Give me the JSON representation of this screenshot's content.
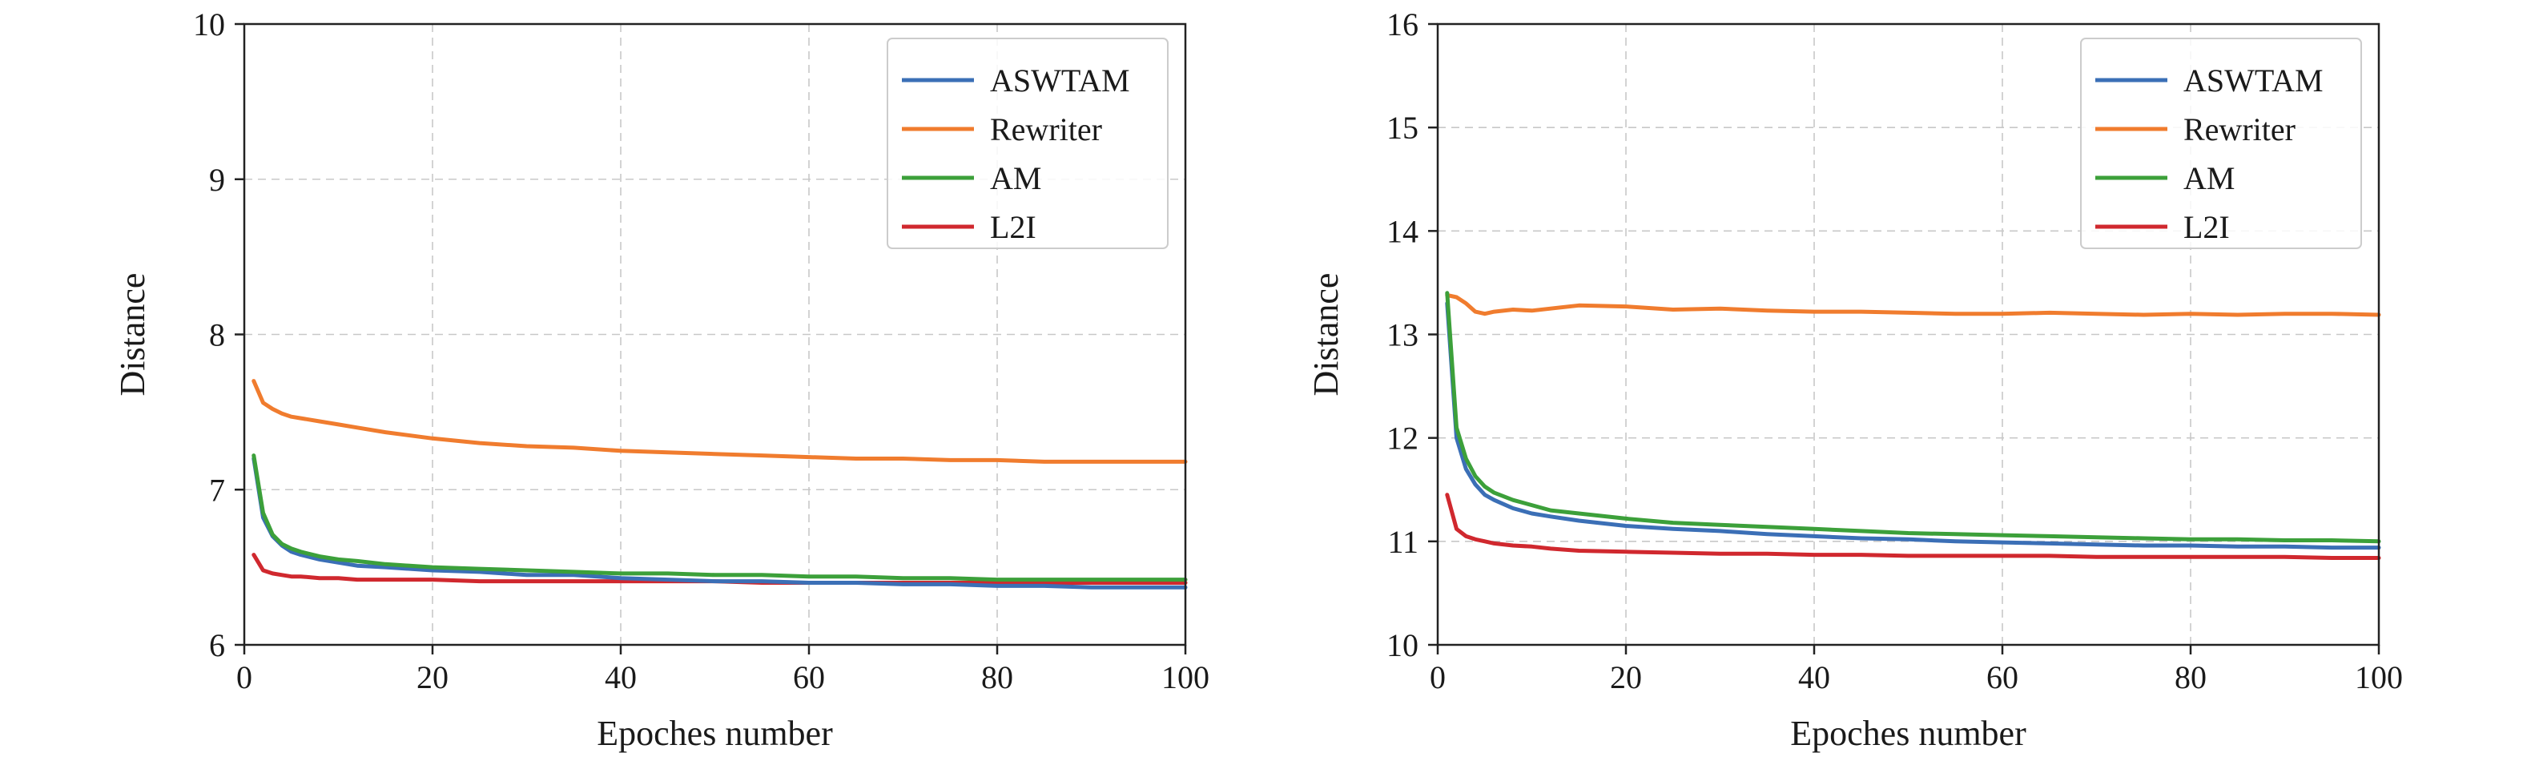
{
  "colors": {
    "ASWTAM": "#3b6fb6",
    "Rewriter": "#f07c2e",
    "AM": "#3ca03a",
    "L2I": "#d0282e",
    "grid": "#c8c8c8",
    "axis": "#222222"
  },
  "chart_data": [
    {
      "type": "line",
      "title": "",
      "xlabel": "Epoches number",
      "ylabel": "Distance",
      "xlim": [
        0,
        100
      ],
      "ylim": [
        6,
        10
      ],
      "xticks": [
        "0",
        "20",
        "40",
        "60",
        "80",
        "100"
      ],
      "yticks": [
        "6",
        "7",
        "8",
        "9",
        "10"
      ],
      "grid": true,
      "legend_position": "top-right",
      "x": [
        1,
        2,
        3,
        4,
        5,
        6,
        8,
        10,
        12,
        15,
        20,
        25,
        30,
        35,
        40,
        45,
        50,
        55,
        60,
        65,
        70,
        75,
        80,
        85,
        90,
        95,
        100
      ],
      "series": [
        {
          "name": "ASWTAM",
          "color": "#3b6fb6",
          "values": [
            7.2,
            6.82,
            6.7,
            6.64,
            6.6,
            6.58,
            6.55,
            6.53,
            6.51,
            6.5,
            6.48,
            6.47,
            6.45,
            6.45,
            6.43,
            6.42,
            6.41,
            6.41,
            6.4,
            6.4,
            6.39,
            6.39,
            6.38,
            6.38,
            6.37,
            6.37,
            6.37
          ]
        },
        {
          "name": "Rewriter",
          "color": "#f07c2e",
          "values": [
            7.7,
            7.56,
            7.52,
            7.49,
            7.47,
            7.46,
            7.44,
            7.42,
            7.4,
            7.37,
            7.33,
            7.3,
            7.28,
            7.27,
            7.25,
            7.24,
            7.23,
            7.22,
            7.21,
            7.2,
            7.2,
            7.19,
            7.19,
            7.18,
            7.18,
            7.18,
            7.18
          ]
        },
        {
          "name": "AM",
          "color": "#3ca03a",
          "values": [
            7.22,
            6.85,
            6.71,
            6.65,
            6.62,
            6.6,
            6.57,
            6.55,
            6.54,
            6.52,
            6.5,
            6.49,
            6.48,
            6.47,
            6.46,
            6.46,
            6.45,
            6.45,
            6.44,
            6.44,
            6.43,
            6.43,
            6.42,
            6.42,
            6.42,
            6.42,
            6.42
          ]
        },
        {
          "name": "L2I",
          "color": "#d0282e",
          "values": [
            6.58,
            6.48,
            6.46,
            6.45,
            6.44,
            6.44,
            6.43,
            6.43,
            6.42,
            6.42,
            6.42,
            6.41,
            6.41,
            6.41,
            6.41,
            6.41,
            6.41,
            6.4,
            6.4,
            6.4,
            6.4,
            6.4,
            6.4,
            6.4,
            6.4,
            6.4,
            6.4
          ]
        }
      ]
    },
    {
      "type": "line",
      "title": "",
      "xlabel": "Epoches number",
      "ylabel": "Distance",
      "xlim": [
        0,
        100
      ],
      "ylim": [
        10,
        16
      ],
      "xticks": [
        "0",
        "20",
        "40",
        "60",
        "80",
        "100"
      ],
      "yticks": [
        "10",
        "11",
        "12",
        "13",
        "14",
        "15",
        "16"
      ],
      "grid": true,
      "legend_position": "top-right",
      "x": [
        1,
        2,
        3,
        4,
        5,
        6,
        8,
        10,
        12,
        15,
        20,
        25,
        30,
        35,
        40,
        45,
        50,
        55,
        60,
        65,
        70,
        75,
        80,
        85,
        90,
        95,
        100
      ],
      "series": [
        {
          "name": "ASWTAM",
          "color": "#3b6fb6",
          "values": [
            13.3,
            12.0,
            11.7,
            11.55,
            11.45,
            11.4,
            11.32,
            11.27,
            11.24,
            11.2,
            11.15,
            11.12,
            11.1,
            11.07,
            11.05,
            11.03,
            11.02,
            11.0,
            10.99,
            10.98,
            10.97,
            10.96,
            10.96,
            10.95,
            10.95,
            10.94,
            10.94
          ]
        },
        {
          "name": "Rewriter",
          "color": "#f07c2e",
          "values": [
            13.38,
            13.36,
            13.3,
            13.22,
            13.2,
            13.22,
            13.24,
            13.23,
            13.25,
            13.28,
            13.27,
            13.24,
            13.25,
            13.23,
            13.22,
            13.22,
            13.21,
            13.2,
            13.2,
            13.21,
            13.2,
            13.19,
            13.2,
            13.19,
            13.2,
            13.2,
            13.19
          ]
        },
        {
          "name": "AM",
          "color": "#3ca03a",
          "values": [
            13.4,
            12.1,
            11.8,
            11.63,
            11.53,
            11.47,
            11.4,
            11.35,
            11.3,
            11.27,
            11.22,
            11.18,
            11.16,
            11.14,
            11.12,
            11.1,
            11.08,
            11.07,
            11.06,
            11.05,
            11.04,
            11.03,
            11.02,
            11.02,
            11.01,
            11.01,
            11.0
          ]
        },
        {
          "name": "L2I",
          "color": "#d0282e",
          "values": [
            11.45,
            11.12,
            11.05,
            11.02,
            11.0,
            10.98,
            10.96,
            10.95,
            10.93,
            10.91,
            10.9,
            10.89,
            10.88,
            10.88,
            10.87,
            10.87,
            10.86,
            10.86,
            10.86,
            10.86,
            10.85,
            10.85,
            10.85,
            10.85,
            10.85,
            10.84,
            10.84
          ]
        }
      ]
    }
  ]
}
